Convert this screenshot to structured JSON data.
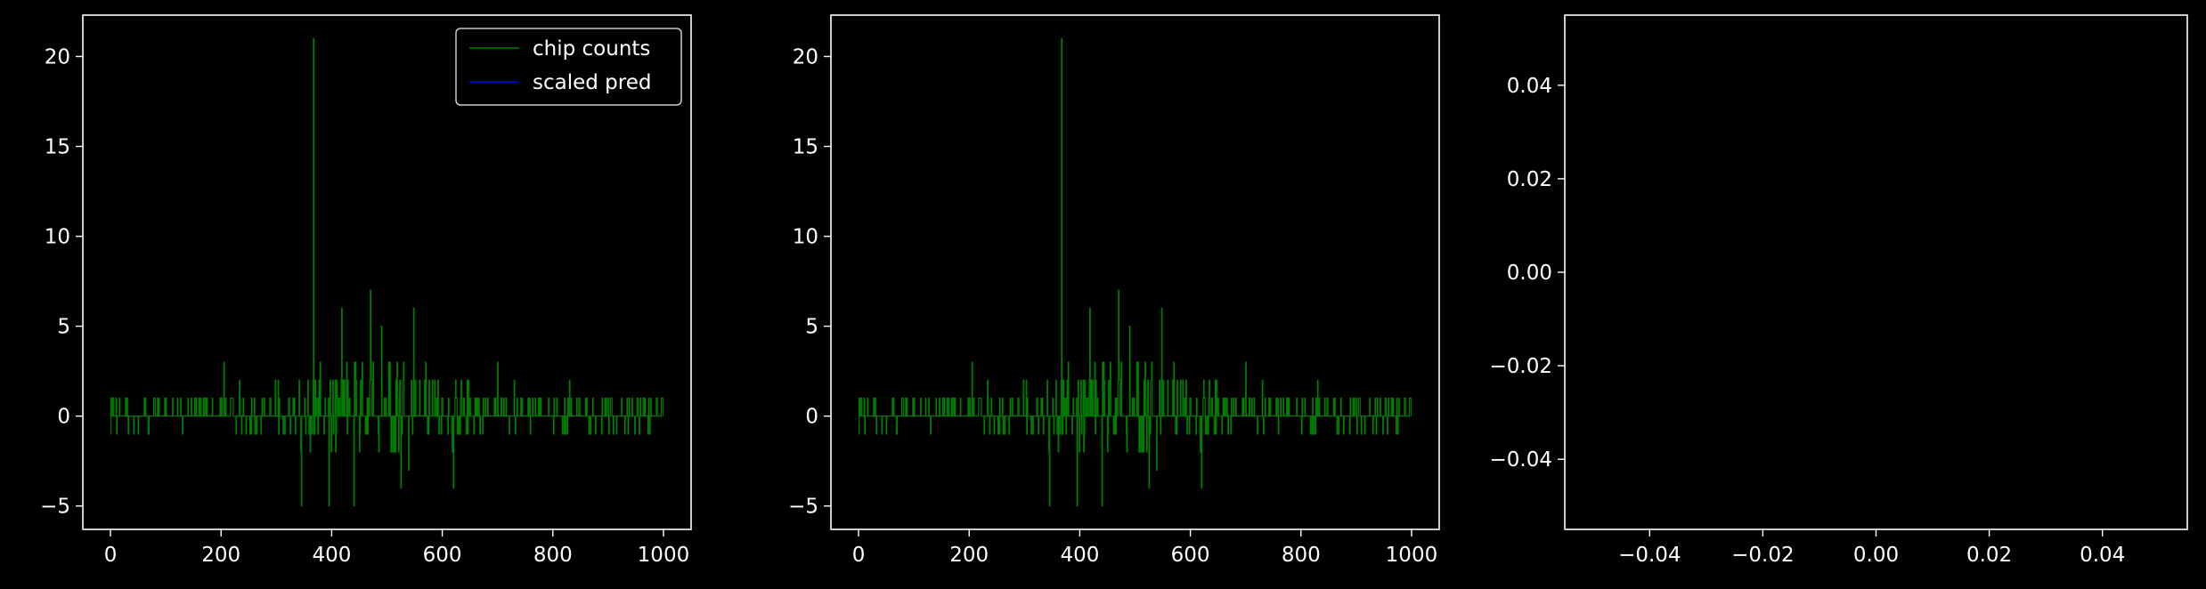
{
  "chart_data": [
    {
      "type": "line",
      "title": "",
      "xlabel": "",
      "ylabel": "",
      "xlim": [
        -50,
        1050
      ],
      "ylim": [
        -6.3,
        22.3
      ],
      "xticks": [
        0,
        200,
        400,
        600,
        800,
        1000
      ],
      "xtick_labels": [
        "0",
        "200",
        "400",
        "600",
        "800",
        "1000"
      ],
      "yticks": [
        -5,
        0,
        5,
        10,
        15,
        20
      ],
      "ytick_labels": [
        "−5",
        "0",
        "5",
        "10",
        "15",
        "20"
      ],
      "grid": false,
      "legend": {
        "placement": "upper right",
        "entries": [
          "chip counts",
          "scaled pred"
        ]
      },
      "series": [
        {
          "name": "chip counts",
          "color": "#008000",
          "x_range": [
            0,
            999
          ],
          "values_ref": "counts"
        },
        {
          "name": "scaled pred",
          "color": "#0000ff",
          "x": [],
          "y": []
        }
      ]
    },
    {
      "type": "line",
      "title": "",
      "xlabel": "",
      "ylabel": "",
      "xlim": [
        -50,
        1050
      ],
      "ylim": [
        -6.3,
        22.3
      ],
      "xticks": [
        0,
        200,
        400,
        600,
        800,
        1000
      ],
      "xtick_labels": [
        "0",
        "200",
        "400",
        "600",
        "800",
        "1000"
      ],
      "yticks": [
        -5,
        0,
        5,
        10,
        15,
        20
      ],
      "ytick_labels": [
        "−5",
        "0",
        "5",
        "10",
        "15",
        "20"
      ],
      "grid": false,
      "series": [
        {
          "color": "#008000",
          "x_range": [
            0,
            999
          ],
          "values_ref": "counts"
        }
      ]
    },
    {
      "type": "line",
      "title": "",
      "xlabel": "",
      "ylabel": "",
      "xlim": [
        -0.055,
        0.055
      ],
      "ylim": [
        -0.055,
        0.055
      ],
      "xticks": [
        -0.04,
        -0.02,
        0,
        0.02,
        0.04
      ],
      "xtick_labels": [
        "−0.04",
        "−0.02",
        "0.00",
        "0.02",
        "0.04"
      ],
      "yticks": [
        -0.04,
        -0.02,
        0,
        0.02,
        0.04
      ],
      "ytick_labels": [
        "−0.04",
        "−0.02",
        "0.00",
        "0.02",
        "0.04"
      ],
      "grid": false,
      "series": []
    }
  ],
  "counts": {
    "note_values": "chip counts per index 0..999, read approximately from the plotted trace",
    "key_points": [
      {
        "x": 0,
        "y": -1
      },
      {
        "x": 5,
        "y": 1
      },
      {
        "x": 205,
        "y": 3
      },
      {
        "x": 345,
        "y": -5
      },
      {
        "x": 367,
        "y": 21
      },
      {
        "x": 395,
        "y": -5
      },
      {
        "x": 418,
        "y": 6
      },
      {
        "x": 440,
        "y": -5
      },
      {
        "x": 470,
        "y": 7
      },
      {
        "x": 490,
        "y": 5
      },
      {
        "x": 525,
        "y": -4
      },
      {
        "x": 548,
        "y": 6
      },
      {
        "x": 620,
        "y": -4
      },
      {
        "x": 700,
        "y": 3
      },
      {
        "x": 830,
        "y": 2
      },
      {
        "x": 990,
        "y": 0
      }
    ],
    "values": []
  },
  "colors": {
    "background": "#000000",
    "axes": "#ffffff",
    "counts": "#008000",
    "pred": "#0000ff"
  }
}
